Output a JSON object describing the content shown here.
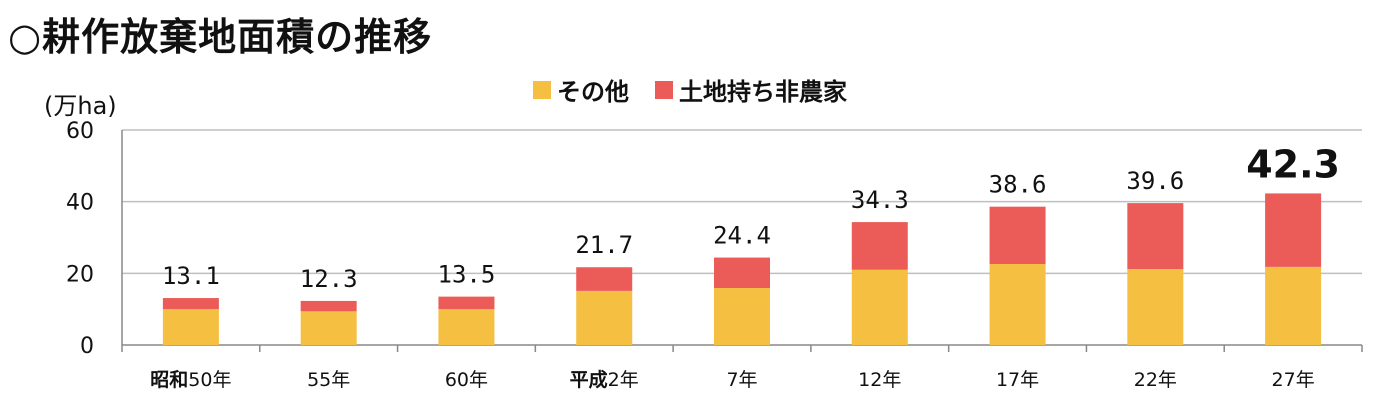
{
  "title": "○耕作放棄地面積の推移",
  "unit_label": "(万ha)",
  "colors": {
    "other": "#F5BF42",
    "nonfarm": "#EB5B57",
    "grid": "#BFBFBF",
    "axis": "#888888"
  },
  "chart_data": {
    "type": "bar",
    "stacked": true,
    "title": "○耕作放棄地面積の推移",
    "ylabel": "(万ha)",
    "ylim": [
      0,
      60
    ],
    "yticks": [
      0,
      20,
      40,
      60
    ],
    "categories": [
      "昭和50年",
      "55年",
      "60年",
      "平成2年",
      "7年",
      "12年",
      "17年",
      "22年",
      "27年"
    ],
    "category_parts": [
      {
        "era": "昭和",
        "year": "50年"
      },
      {
        "era": "",
        "year": "55年"
      },
      {
        "era": "",
        "year": "60年"
      },
      {
        "era": "平成",
        "year": "2年"
      },
      {
        "era": "",
        "year": "7年"
      },
      {
        "era": "",
        "year": "12年"
      },
      {
        "era": "",
        "year": "17年"
      },
      {
        "era": "",
        "year": "22年"
      },
      {
        "era": "",
        "year": "27年"
      }
    ],
    "series": [
      {
        "name": "その他",
        "values": [
          10.0,
          9.4,
          10.0,
          15.1,
          15.9,
          21.0,
          22.6,
          21.2,
          21.8
        ]
      },
      {
        "name": "土地持ち非農家",
        "values": [
          3.1,
          2.9,
          3.5,
          6.6,
          8.5,
          13.3,
          16.0,
          18.4,
          20.5
        ]
      }
    ],
    "totals": [
      "13.1",
      "12.3",
      "13.5",
      "21.7",
      "24.4",
      "34.3",
      "38.6",
      "39.6",
      "42.3"
    ],
    "grid": true,
    "legend_position": "top-center"
  }
}
